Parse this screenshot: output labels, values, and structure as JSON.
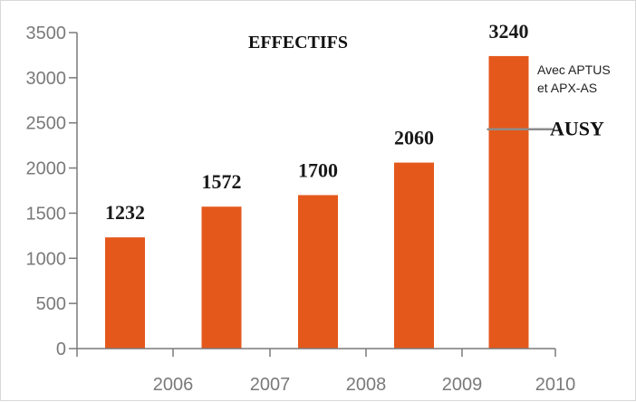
{
  "chart_data": {
    "type": "bar",
    "title": "EFFECTIFS",
    "x_tick_labels": [
      "2006",
      "2007",
      "2008",
      "2009",
      "2010"
    ],
    "values": [
      1232,
      1572,
      1700,
      2060,
      3240
    ],
    "data_labels": [
      "1232",
      "1572",
      "1700",
      "2060",
      "3240"
    ],
    "y_ticks": [
      "0",
      "500",
      "1000",
      "1500",
      "2000",
      "2500",
      "3000",
      "3500"
    ],
    "ylim": [
      0,
      3500
    ],
    "xlabel": "",
    "ylabel": "",
    "grid": false,
    "bar_color": "#e4581c",
    "annotations": {
      "note_line1": "Avec APTUS",
      "note_line2": "et APX-AS",
      "marker_label": "AUSY",
      "marker_value": 2430,
      "marker_bar_index": 4
    }
  }
}
